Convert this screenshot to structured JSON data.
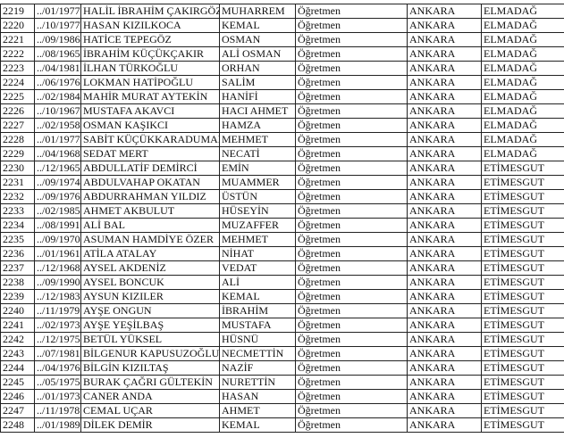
{
  "table": {
    "rows": [
      [
        "2219",
        "../01/1977",
        "HALİL İBRAHİM ÇAKIRGÖZ",
        "MUHARREM",
        "Öğretmen",
        "ANKARA",
        "ELMADAĞ"
      ],
      [
        "2220",
        "../10/1977",
        "HASAN KIZILKOCA",
        "KEMAL",
        "Öğretmen",
        "ANKARA",
        "ELMADAĞ"
      ],
      [
        "2221",
        "../09/1986",
        "HATİCE TEPEGÖZ",
        "OSMAN",
        "Öğretmen",
        "ANKARA",
        "ELMADAĞ"
      ],
      [
        "2222",
        "../08/1965",
        "İBRAHİM KÜÇÜKÇAKIR",
        "ALİ OSMAN",
        "Öğretmen",
        "ANKARA",
        "ELMADAĞ"
      ],
      [
        "2223",
        "../04/1981",
        "İLHAN TÜRKOĞLU",
        "ORHAN",
        "Öğretmen",
        "ANKARA",
        "ELMADAĞ"
      ],
      [
        "2224",
        "../06/1976",
        "LOKMAN HATİPOĞLU",
        "SALİM",
        "Öğretmen",
        "ANKARA",
        "ELMADAĞ"
      ],
      [
        "2225",
        "../02/1984",
        "MAHİR MURAT AYTEKİN",
        "HANİFİ",
        "Öğretmen",
        "ANKARA",
        "ELMADAĞ"
      ],
      [
        "2226",
        "../10/1967",
        "MUSTAFA AKAVCI",
        "HACI AHMET",
        "Öğretmen",
        "ANKARA",
        "ELMADAĞ"
      ],
      [
        "2227",
        "../02/1958",
        "OSMAN KAŞIKCI",
        "HAMZA",
        "Öğretmen",
        "ANKARA",
        "ELMADAĞ"
      ],
      [
        "2228",
        "../01/1977",
        "SABİT KÜÇÜKKARADUMAN",
        "MEHMET",
        "Öğretmen",
        "ANKARA",
        "ELMADAĞ"
      ],
      [
        "2229",
        "../04/1968",
        "SEDAT MERT",
        "NECATİ",
        "Öğretmen",
        "ANKARA",
        "ELMADAĞ"
      ],
      [
        "2230",
        "../12/1965",
        "ABDULLATİF DEMİRCİ",
        "EMİN",
        "Öğretmen",
        "ANKARA",
        "ETİMESGUT"
      ],
      [
        "2231",
        "../09/1974",
        "ABDULVAHAP OKATAN",
        "MUAMMER",
        "Öğretmen",
        "ANKARA",
        "ETİMESGUT"
      ],
      [
        "2232",
        "../09/1976",
        "ABDURRAHMAN YILDIZ",
        "ÜSTÜN",
        "Öğretmen",
        "ANKARA",
        "ETİMESGUT"
      ],
      [
        "2233",
        "../02/1985",
        "AHMET AKBULUT",
        "HÜSEYİN",
        "Öğretmen",
        "ANKARA",
        "ETİMESGUT"
      ],
      [
        "2234",
        "../08/1991",
        "ALİ BAL",
        "MUZAFFER",
        "Öğretmen",
        "ANKARA",
        "ETİMESGUT"
      ],
      [
        "2235",
        "../09/1970",
        "ASUMAN HAMDİYE ÖZER",
        "MEHMET",
        "Öğretmen",
        "ANKARA",
        "ETİMESGUT"
      ],
      [
        "2236",
        "../01/1961",
        "ATİLA ATALAY",
        "NİHAT",
        "Öğretmen",
        "ANKARA",
        "ETİMESGUT"
      ],
      [
        "2237",
        "../12/1968",
        "AYSEL AKDENİZ",
        "VEDAT",
        "Öğretmen",
        "ANKARA",
        "ETİMESGUT"
      ],
      [
        "2238",
        "../09/1990",
        "AYSEL BONCUK",
        "ALİ",
        "Öğretmen",
        "ANKARA",
        "ETİMESGUT"
      ],
      [
        "2239",
        "../12/1983",
        "AYSUN KIZILER",
        "KEMAL",
        "Öğretmen",
        "ANKARA",
        "ETİMESGUT"
      ],
      [
        "2240",
        "../11/1979",
        "AYŞE ONGUN",
        "İBRAHİM",
        "Öğretmen",
        "ANKARA",
        "ETİMESGUT"
      ],
      [
        "2241",
        "../02/1973",
        "AYŞE YEŞİLBAŞ",
        "MUSTAFA",
        "Öğretmen",
        "ANKARA",
        "ETİMESGUT"
      ],
      [
        "2242",
        "../12/1975",
        "BETÜL YÜKSEL",
        "HÜSNÜ",
        "Öğretmen",
        "ANKARA",
        "ETİMESGUT"
      ],
      [
        "2243",
        "../07/1981",
        "BİLGENUR KAPUSUZOĞLU",
        "NECMETTİN",
        "Öğretmen",
        "ANKARA",
        "ETİMESGUT"
      ],
      [
        "2244",
        "../04/1976",
        "BİLGİN KIZILTAŞ",
        "NAZİF",
        "Öğretmen",
        "ANKARA",
        "ETİMESGUT"
      ],
      [
        "2245",
        "../05/1975",
        "BURAK ÇAĞRI GÜLTEKİN",
        "NURETTİN",
        "Öğretmen",
        "ANKARA",
        "ETİMESGUT"
      ],
      [
        "2246",
        "../01/1973",
        "CANER ANDA",
        "HASAN",
        "Öğretmen",
        "ANKARA",
        "ETİMESGUT"
      ],
      [
        "2247",
        "../11/1978",
        "CEMAL UÇAR",
        "AHMET",
        "Öğretmen",
        "ANKARA",
        "ETİMESGUT"
      ],
      [
        "2248",
        "../01/1989",
        "DİLEK DEMİR",
        "KEMAL",
        "Öğretmen",
        "ANKARA",
        "ETİMESGUT"
      ]
    ]
  }
}
